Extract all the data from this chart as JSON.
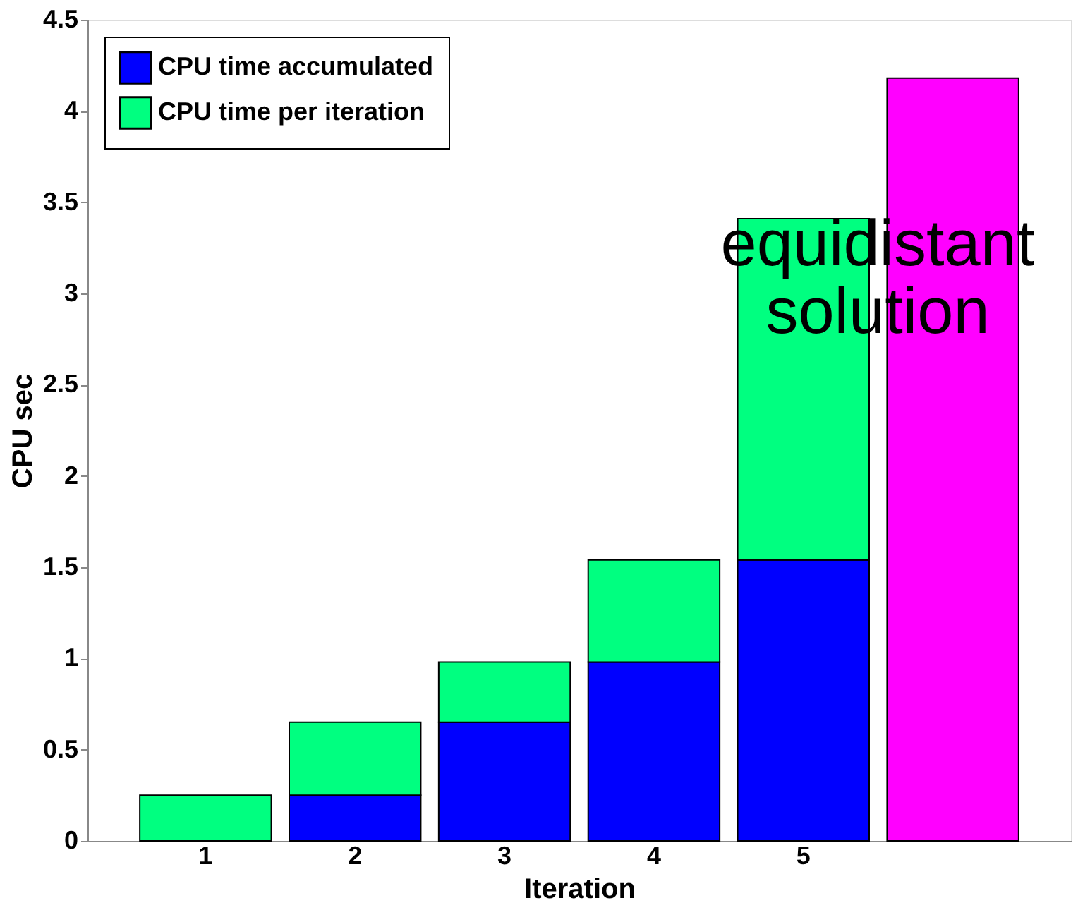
{
  "chart_data": {
    "type": "bar",
    "stacked": true,
    "xlabel": "Iteration",
    "ylabel": "CPU sec",
    "categories": [
      "1",
      "2",
      "3",
      "4",
      "5",
      null
    ],
    "series": [
      {
        "name": "CPU time accumulated",
        "color": "#0000ff",
        "values": [
          null,
          0.25,
          0.65,
          0.98,
          1.54,
          null
        ]
      },
      {
        "name": "CPU time per iteration",
        "color": "#00ff80",
        "values": [
          0.25,
          0.4,
          0.33,
          0.56,
          1.87,
          null
        ]
      },
      {
        "color": "#ff00ff",
        "values": [
          null,
          null,
          null,
          null,
          null,
          4.18
        ]
      }
    ],
    "ylim": [
      0,
      4.5
    ],
    "yticks": [
      0,
      0.5,
      1,
      1.5,
      2,
      2.5,
      3,
      3.5,
      4,
      4.5
    ],
    "grid": false,
    "legend": "top left",
    "annotations": [
      "equidistant\nsolution"
    ]
  }
}
